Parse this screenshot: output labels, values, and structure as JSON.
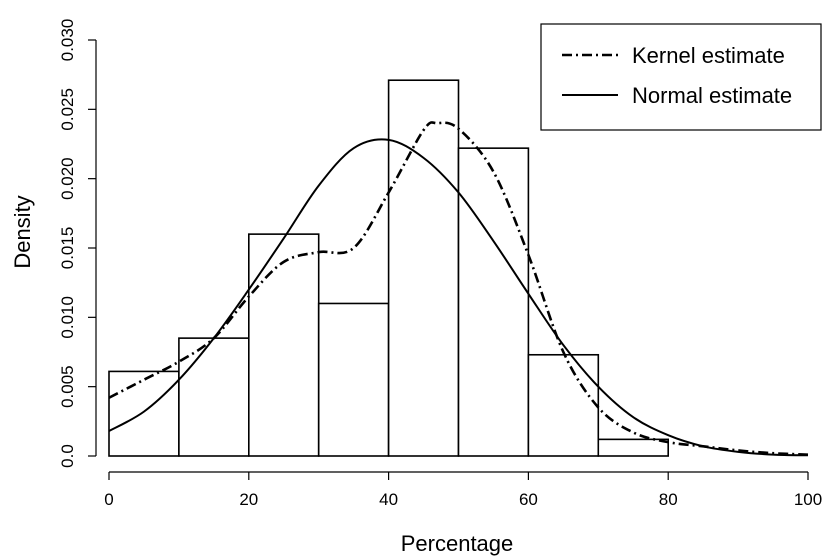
{
  "chart_data": {
    "type": "bar",
    "title": "",
    "xlabel": "Percentage",
    "ylabel": "Density",
    "xlim": [
      0,
      100
    ],
    "ylim": [
      0,
      0.03
    ],
    "x_ticks": [
      "0",
      "20",
      "40",
      "60",
      "80",
      "100"
    ],
    "y_ticks": [
      "0.0",
      "0.005",
      "0.010",
      "0.015",
      "0.020",
      "0.025",
      "0.030"
    ],
    "bins": [
      {
        "from": 0,
        "to": 10,
        "density": 0.0061
      },
      {
        "from": 10,
        "to": 20,
        "density": 0.0085
      },
      {
        "from": 20,
        "to": 30,
        "density": 0.016
      },
      {
        "from": 30,
        "to": 40,
        "density": 0.011
      },
      {
        "from": 40,
        "to": 50,
        "density": 0.0271
      },
      {
        "from": 50,
        "to": 60,
        "density": 0.0222
      },
      {
        "from": 60,
        "to": 70,
        "density": 0.0073
      },
      {
        "from": 70,
        "to": 80,
        "density": 0.0012
      }
    ],
    "series": [
      {
        "name": "Kernel estimate",
        "line_style": "dash-dot",
        "x": [
          0,
          5,
          10,
          15,
          20,
          25,
          30,
          35,
          40,
          45,
          47,
          50,
          55,
          60,
          65,
          70,
          75,
          80,
          85,
          90,
          95,
          100
        ],
        "y": [
          0.0042,
          0.0055,
          0.0068,
          0.0085,
          0.0115,
          0.014,
          0.0147,
          0.015,
          0.019,
          0.0235,
          0.024,
          0.0236,
          0.0205,
          0.0145,
          0.0075,
          0.0035,
          0.0017,
          0.001,
          0.0007,
          0.0004,
          0.0002,
          0.0001
        ]
      },
      {
        "name": "Normal estimate",
        "line_style": "solid",
        "x": [
          0,
          5,
          10,
          15,
          20,
          25,
          30,
          35,
          40,
          45,
          50,
          55,
          60,
          65,
          70,
          75,
          80,
          85,
          90,
          95,
          100
        ],
        "y": [
          0.0018,
          0.0032,
          0.0055,
          0.0085,
          0.012,
          0.0157,
          0.0195,
          0.0222,
          0.0228,
          0.0215,
          0.019,
          0.0155,
          0.0117,
          0.008,
          0.005,
          0.0028,
          0.0015,
          0.0007,
          0.0003,
          0.0001,
          5e-05
        ]
      }
    ],
    "legend": {
      "position": "top-right",
      "entries": [
        "Kernel estimate",
        "Normal estimate"
      ]
    },
    "grid": false
  }
}
